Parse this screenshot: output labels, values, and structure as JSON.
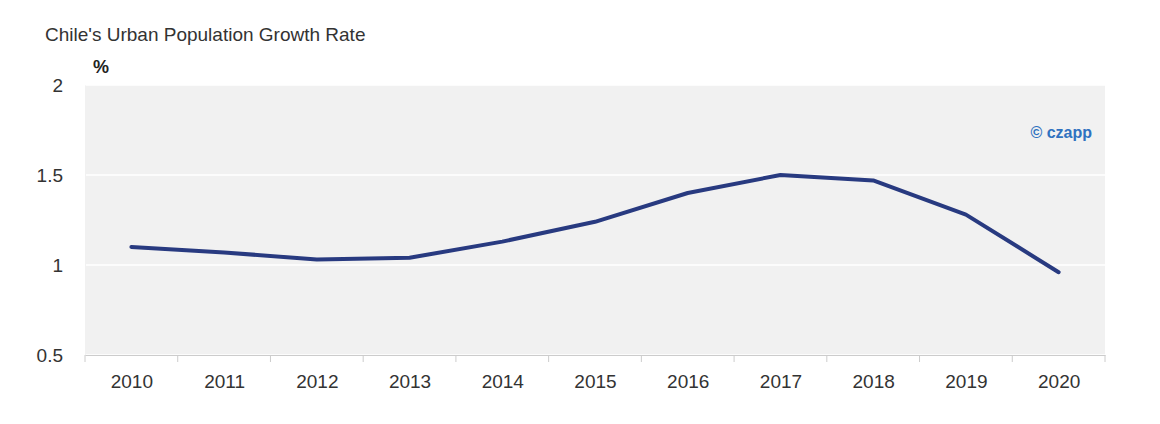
{
  "chart_data": {
    "type": "line",
    "title": "Chile's Urban Population Growth Rate",
    "ylabel": "%",
    "annotations": [
      "© czapp"
    ],
    "categories": [
      "2010",
      "2011",
      "2012",
      "2013",
      "2014",
      "2015",
      "2016",
      "2017",
      "2018",
      "2019",
      "2020"
    ],
    "values": [
      1.1,
      1.07,
      1.03,
      1.04,
      1.13,
      1.24,
      1.4,
      1.5,
      1.47,
      1.28,
      0.96
    ],
    "color": "#283a80",
    "ylim": [
      0.5,
      2
    ],
    "yticks": [
      0.5,
      1,
      1.5,
      2
    ],
    "grid": true
  }
}
